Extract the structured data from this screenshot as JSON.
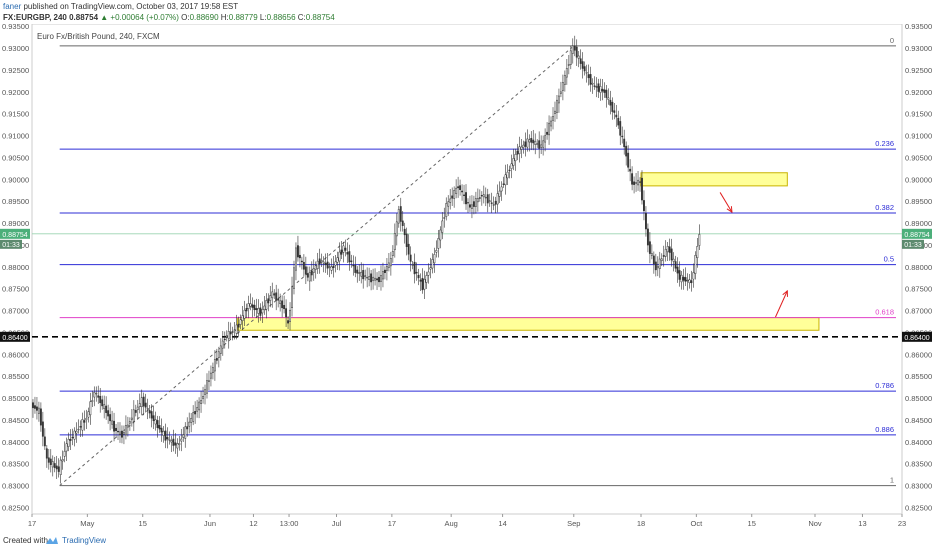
{
  "header": {
    "author": "faner",
    "published_text": "published on TradingView.com, October 03, 2017 19:58 EST",
    "symbol_line": {
      "symbol": "FX:EURGBP, 240",
      "last": "0.88754",
      "change": "+0.00064 (+0.07%)",
      "o_label": "O:",
      "o": "0.88690",
      "h_label": "H:",
      "h": "0.88779",
      "l_label": "L:",
      "l": "0.88656",
      "c_label": "C:",
      "c": "0.88754"
    }
  },
  "footer": {
    "created_with": "Created with",
    "brand": "TradingView"
  },
  "colors": {
    "fib_line": "#2c2cd6",
    "fib_0618": "#e040c8",
    "zone_fill": "#ffff99",
    "zone_border": "#c8b400",
    "arrow": "#e02020",
    "dashed_level": "#000000",
    "candle_up": "#888888",
    "candle_down": "#333333",
    "price_badge": "#4caf7a"
  },
  "chart_data": {
    "type": "candlestick",
    "title": "Euro Fx/British Pound, 240, FXCM",
    "y_ticks": [
      "0.93500",
      "0.93000",
      "0.92500",
      "0.92000",
      "0.91500",
      "0.91000",
      "0.90500",
      "0.90000",
      "0.89500",
      "0.89000",
      "0.88500",
      "0.88000",
      "0.87500",
      "0.87000",
      "0.86500",
      "0.86000",
      "0.85500",
      "0.85000",
      "0.84500",
      "0.84000",
      "0.83500",
      "0.83000",
      "0.82500"
    ],
    "y_range": [
      0.8235,
      0.9355
    ],
    "x_ticks": [
      "17",
      "May",
      "15",
      "Jun",
      "12",
      "13:00",
      "Jul",
      "17",
      "Aug",
      "14",
      "Sep",
      "18",
      "Oct",
      "15",
      "Nov",
      "13",
      "23"
    ],
    "x_range": [
      "2017-04-17",
      "2017-11-23"
    ],
    "x_tick_dates": [
      "2017-04-17",
      "2017-05-01",
      "2017-05-15",
      "2017-06-01",
      "2017-06-12",
      "2017-06-21",
      "2017-07-03",
      "2017-07-17",
      "2017-08-01",
      "2017-08-14",
      "2017-09-01",
      "2017-09-18",
      "2017-10-02",
      "2017-10-16",
      "2017-11-01",
      "2017-11-13",
      "2017-11-23"
    ],
    "price_path": [
      [
        "2017-04-17",
        0.8485
      ],
      [
        "2017-04-19",
        0.847
      ],
      [
        "2017-04-21",
        0.836
      ],
      [
        "2017-04-24",
        0.8335
      ],
      [
        "2017-04-26",
        0.8395
      ],
      [
        "2017-05-01",
        0.8455
      ],
      [
        "2017-05-03",
        0.8515
      ],
      [
        "2017-05-06",
        0.847
      ],
      [
        "2017-05-08",
        0.843
      ],
      [
        "2017-05-10",
        0.8415
      ],
      [
        "2017-05-13",
        0.8465
      ],
      [
        "2017-05-15",
        0.8495
      ],
      [
        "2017-05-18",
        0.845
      ],
      [
        "2017-05-21",
        0.841
      ],
      [
        "2017-05-24",
        0.839
      ],
      [
        "2017-05-27",
        0.8445
      ],
      [
        "2017-05-30",
        0.8495
      ],
      [
        "2017-06-02",
        0.857
      ],
      [
        "2017-06-05",
        0.864
      ],
      [
        "2017-06-08",
        0.866
      ],
      [
        "2017-06-11",
        0.8715
      ],
      [
        "2017-06-14",
        0.8695
      ],
      [
        "2017-06-17",
        0.874
      ],
      [
        "2017-06-20",
        0.8705
      ],
      [
        "2017-06-21",
        0.8665
      ],
      [
        "2017-06-23",
        0.884
      ],
      [
        "2017-06-26",
        0.8775
      ],
      [
        "2017-06-29",
        0.8815
      ],
      [
        "2017-07-02",
        0.8795
      ],
      [
        "2017-07-05",
        0.8845
      ],
      [
        "2017-07-08",
        0.879
      ],
      [
        "2017-07-11",
        0.8775
      ],
      [
        "2017-07-14",
        0.877
      ],
      [
        "2017-07-17",
        0.8815
      ],
      [
        "2017-07-19",
        0.893
      ],
      [
        "2017-07-22",
        0.881
      ],
      [
        "2017-07-25",
        0.8755
      ],
      [
        "2017-07-28",
        0.8825
      ],
      [
        "2017-07-31",
        0.894
      ],
      [
        "2017-08-03",
        0.8985
      ],
      [
        "2017-08-06",
        0.8935
      ],
      [
        "2017-08-09",
        0.8965
      ],
      [
        "2017-08-12",
        0.894
      ],
      [
        "2017-08-15",
        0.9005
      ],
      [
        "2017-08-18",
        0.9065
      ],
      [
        "2017-08-21",
        0.909
      ],
      [
        "2017-08-24",
        0.9075
      ],
      [
        "2017-08-27",
        0.9145
      ],
      [
        "2017-08-30",
        0.9235
      ],
      [
        "2017-09-01",
        0.9305
      ],
      [
        "2017-09-03",
        0.9265
      ],
      [
        "2017-09-06",
        0.9215
      ],
      [
        "2017-09-09",
        0.92
      ],
      [
        "2017-09-12",
        0.914
      ],
      [
        "2017-09-14",
        0.9075
      ],
      [
        "2017-09-16",
        0.899
      ],
      [
        "2017-09-18",
        0.8995
      ],
      [
        "2017-09-20",
        0.885
      ],
      [
        "2017-09-22",
        0.8795
      ],
      [
        "2017-09-25",
        0.8845
      ],
      [
        "2017-09-28",
        0.8775
      ],
      [
        "2017-10-01",
        0.8765
      ],
      [
        "2017-10-03",
        0.8875
      ]
    ],
    "annotations": {
      "fib_levels": [
        {
          "label": "0",
          "price": 0.9305
        },
        {
          "label": "0.236",
          "price": 0.9069
        },
        {
          "label": "0.382",
          "price": 0.8923
        },
        {
          "label": "0.5",
          "price": 0.8805
        },
        {
          "label": "0.618",
          "price": 0.8684
        },
        {
          "label": "0.786",
          "price": 0.8516
        },
        {
          "label": "0.886",
          "price": 0.8416
        },
        {
          "label": "1",
          "price": 0.83
        }
      ],
      "horizontal_line": {
        "price": 0.864,
        "label": "0.86400",
        "style": "dashed"
      },
      "trend_line": {
        "from": [
          "2017-04-24",
          0.83
        ],
        "to": [
          "2017-09-01",
          0.9305
        ],
        "style": "dashed"
      },
      "zones": [
        {
          "from": "2017-09-18",
          "to": "2017-10-25",
          "price_top": 0.9015,
          "price_bottom": 0.8985
        },
        {
          "from": "2017-06-08",
          "to": "2017-11-02",
          "price_top": 0.8684,
          "price_bottom": 0.8655
        }
      ],
      "arrows": [
        {
          "from": [
            "2017-10-08",
            0.897
          ],
          "to": [
            "2017-10-11",
            0.8925
          ],
          "direction": "down"
        },
        {
          "from": [
            "2017-10-22",
            0.8685
          ],
          "to": [
            "2017-10-25",
            0.8745
          ],
          "direction": "up"
        }
      ],
      "last_price": {
        "price": 0.88754,
        "label": "0.88754",
        "countdown": "01:33"
      }
    }
  }
}
